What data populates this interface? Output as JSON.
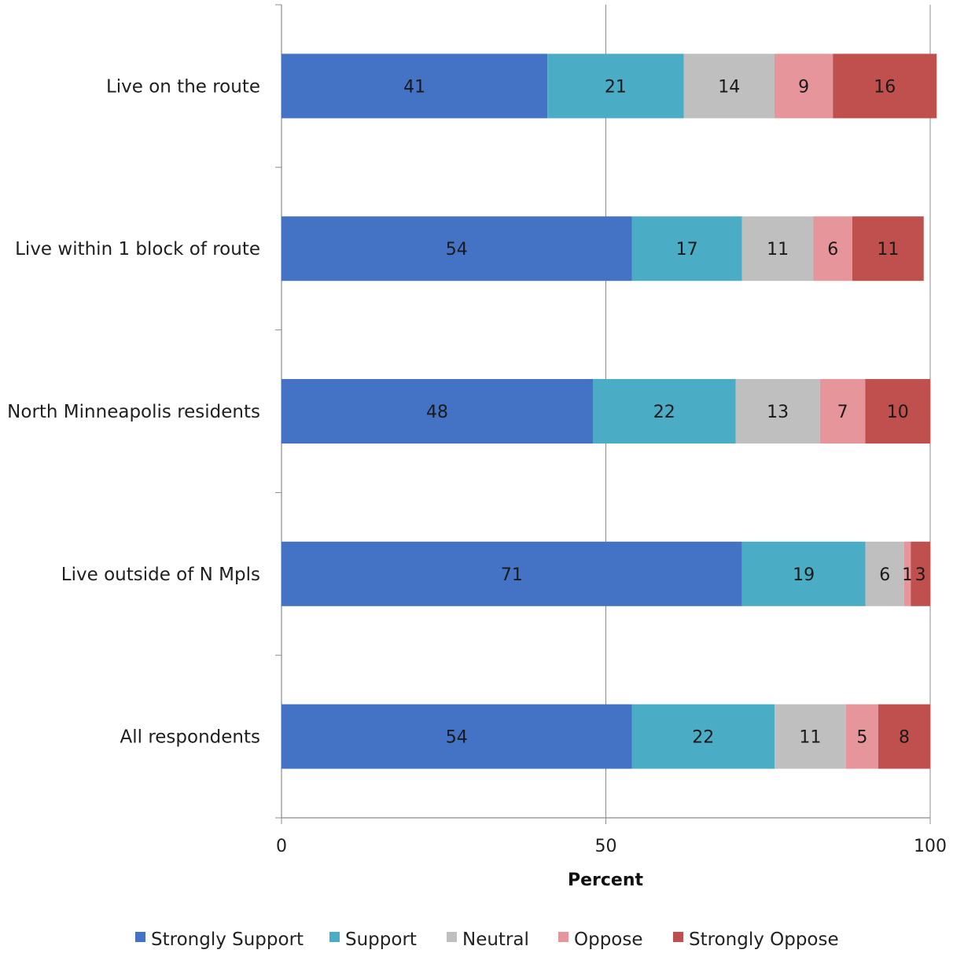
{
  "chart_data": {
    "type": "bar",
    "orientation": "horizontal",
    "stacked": true,
    "title": "",
    "xlabel": "Percent",
    "ylabel": "",
    "xlim": [
      0,
      100
    ],
    "x_ticks": [
      0,
      50,
      100
    ],
    "x_tick_labels": [
      "0",
      "50",
      "100"
    ],
    "grid": "vertical major gridlines",
    "legend_position": "bottom",
    "categories": [
      "Live on the route",
      "Live within 1 block of route",
      "North Minneapolis residents",
      "Live outside of N Mpls",
      "All respondents"
    ],
    "series": [
      {
        "name": "Strongly Support",
        "color": "#4472C4",
        "values": [
          41,
          54,
          48,
          71,
          54
        ]
      },
      {
        "name": "Support",
        "color": "#4BACC6",
        "values": [
          21,
          17,
          22,
          19,
          22
        ]
      },
      {
        "name": "Neutral",
        "color": "#BFBFBF",
        "values": [
          14,
          11,
          13,
          6,
          11
        ]
      },
      {
        "name": "Oppose",
        "color": "#E6959A",
        "values": [
          9,
          6,
          7,
          1,
          5
        ]
      },
      {
        "name": "Strongly Oppose",
        "color": "#C0504D",
        "values": [
          16,
          11,
          10,
          3,
          8
        ]
      }
    ],
    "value_label_color": "#1a1a1a"
  }
}
